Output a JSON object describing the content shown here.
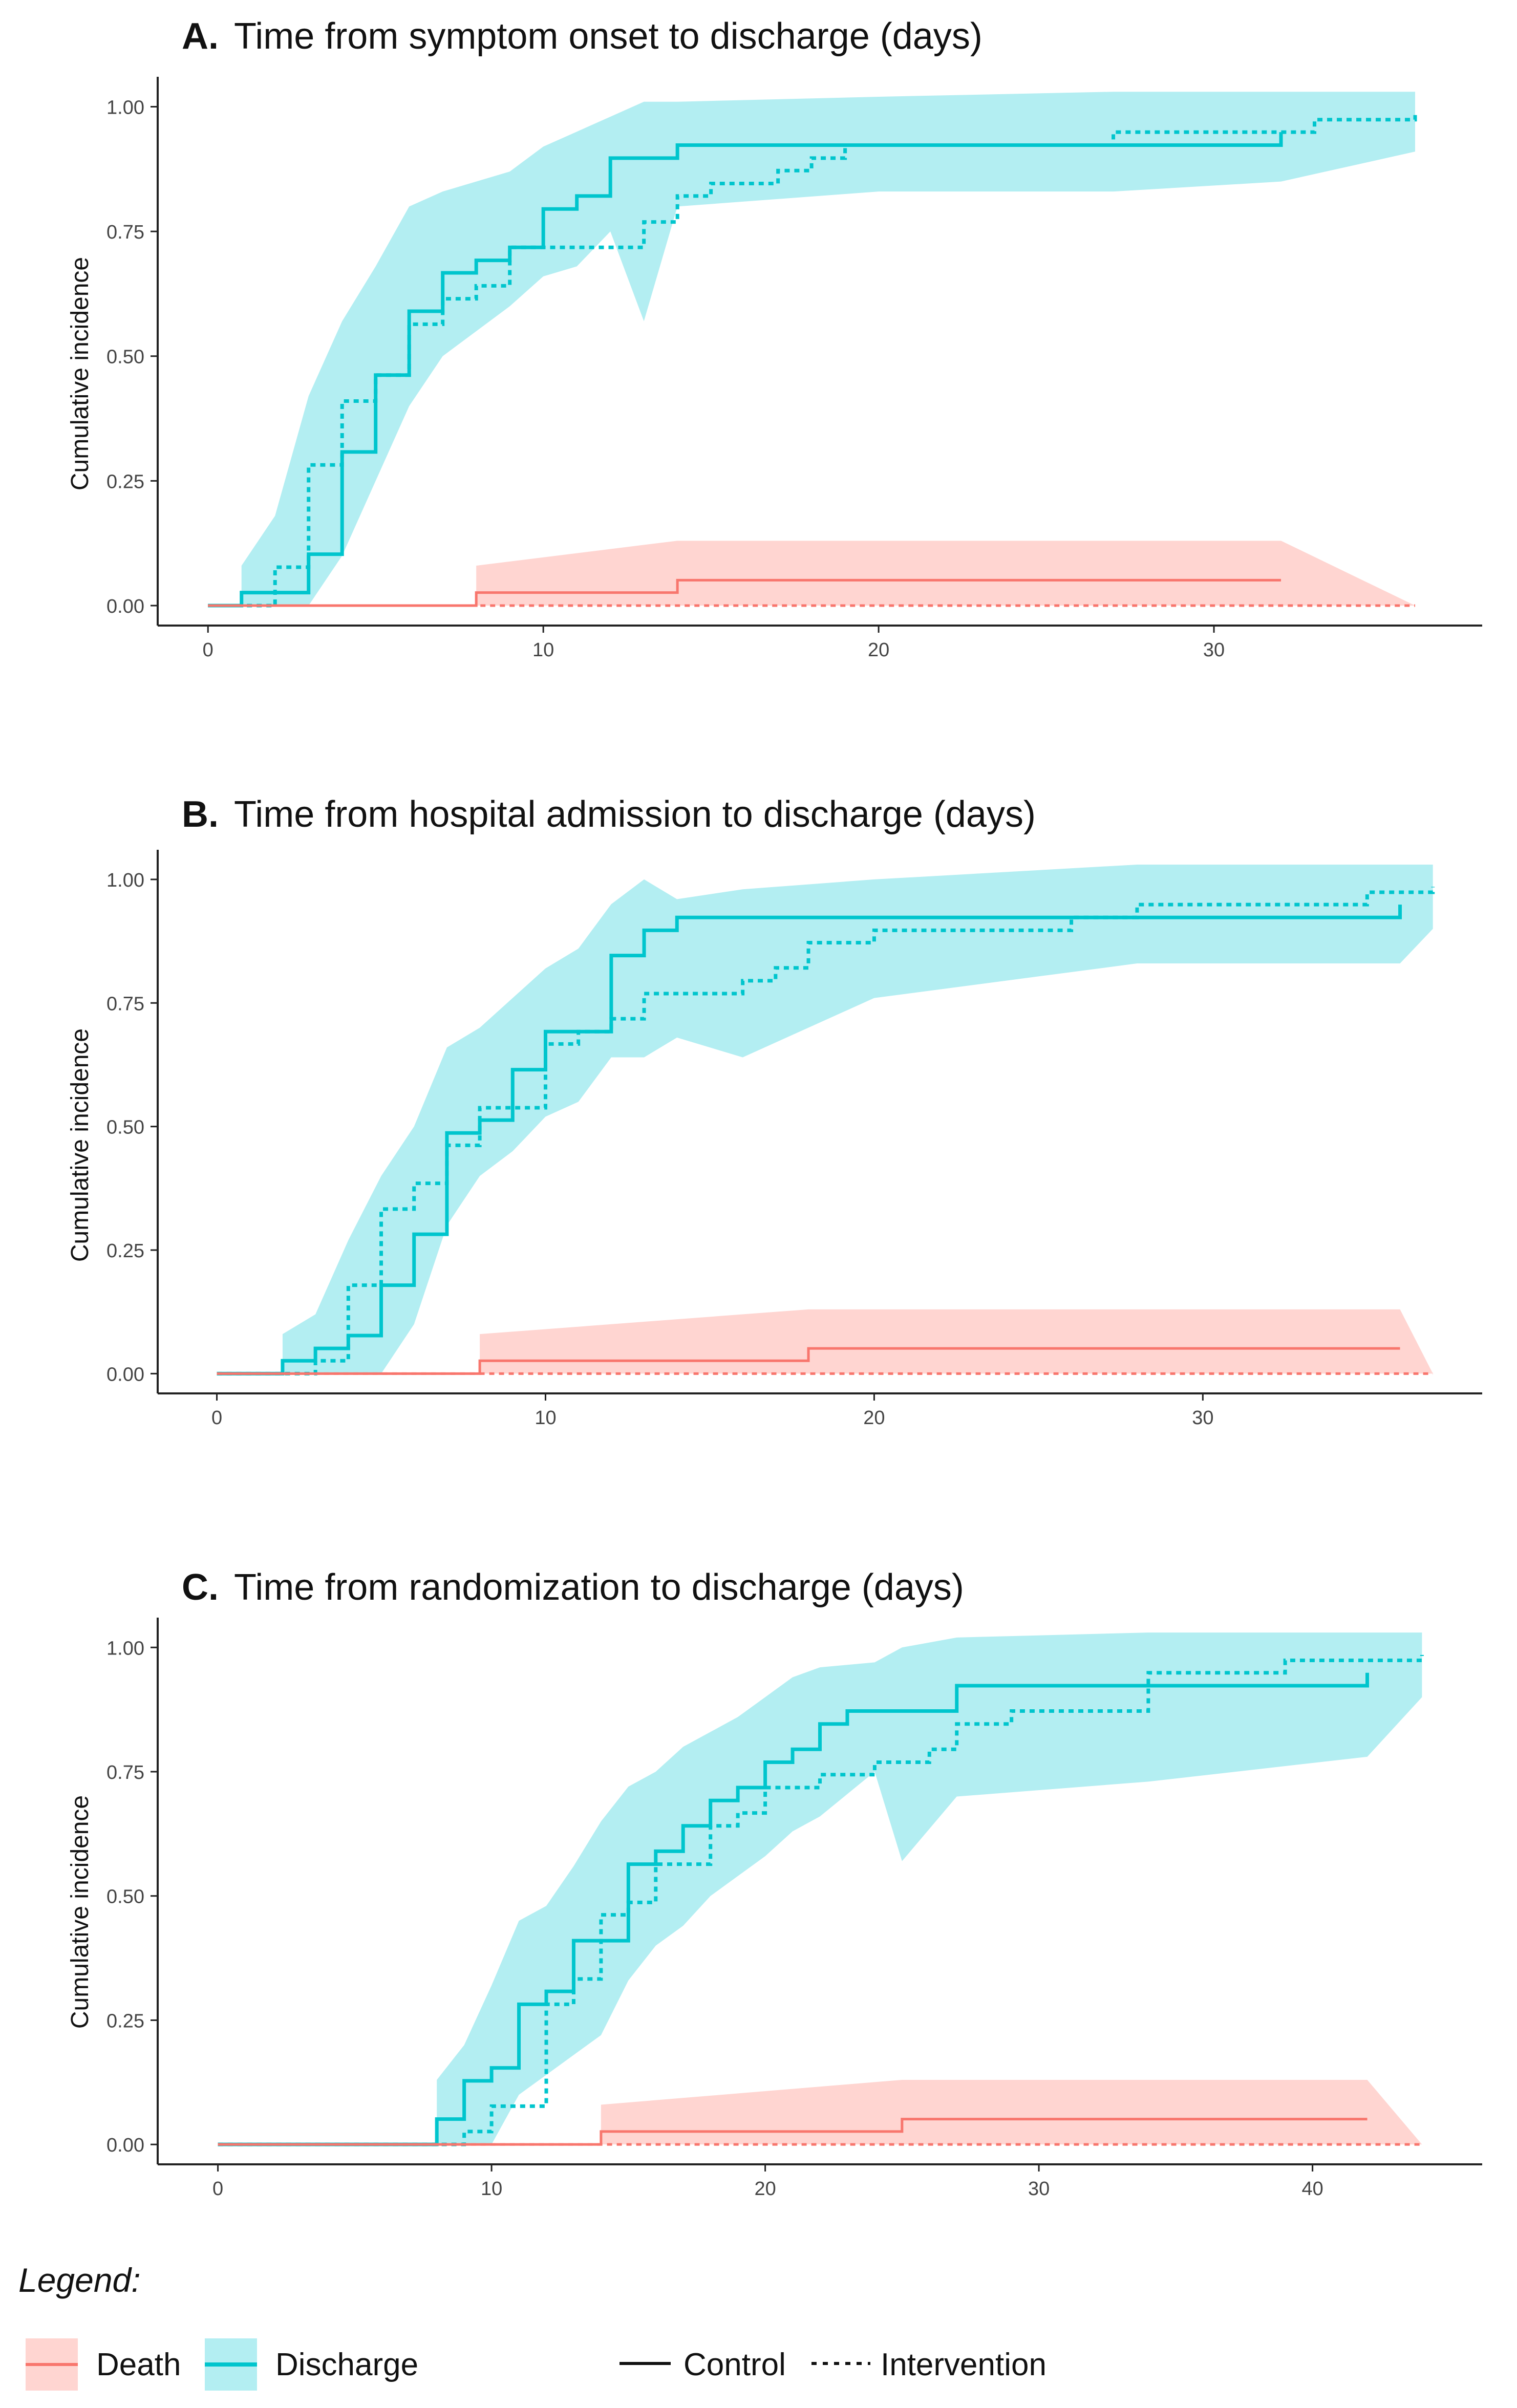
{
  "legend": {
    "heading": "Legend:",
    "events": [
      {
        "key": "death",
        "label": "Death",
        "line_color": "#f8766d",
        "fill_color": "#ffd5d1"
      },
      {
        "key": "discharge",
        "label": "Discharge",
        "line_color": "#00c5cd",
        "fill_color": "#b3eef2"
      }
    ],
    "groups": [
      {
        "key": "control",
        "label": "Control",
        "line_style": "solid"
      },
      {
        "key": "intervention",
        "label": "Intervention",
        "line_style": "dotted"
      }
    ]
  },
  "chart_data": [
    {
      "type": "line",
      "subtype": "step cumulative incidence with confidence bands",
      "title_prefix": "A.",
      "title": "Time from symptom onset to discharge (days)",
      "ylabel": "Cumulative incidence",
      "xlabel": "",
      "xlim": [
        -1.5,
        38
      ],
      "ylim": [
        -0.04,
        1.06
      ],
      "x_ticks": [
        0,
        10,
        20,
        30
      ],
      "y_ticks": [
        0.0,
        0.25,
        0.5,
        0.75,
        1.0
      ],
      "y_tick_labels": [
        "0.00",
        "0.25",
        "0.50",
        "0.75",
        "1.00"
      ],
      "grid": false,
      "series": [
        {
          "name": "Discharge - Control",
          "event": "discharge",
          "group": "control",
          "x": [
            0,
            1,
            3,
            4,
            5,
            6,
            7,
            8,
            9,
            10,
            11,
            12,
            14,
            32
          ],
          "y": [
            0.0,
            0.026,
            0.103,
            0.308,
            0.462,
            0.59,
            0.667,
            0.692,
            0.718,
            0.795,
            0.821,
            0.897,
            0.923,
            0.949
          ]
        },
        {
          "name": "Discharge - Intervention",
          "event": "discharge",
          "group": "intervention",
          "x": [
            0,
            2,
            3,
            4,
            5,
            6,
            7,
            8,
            9,
            13,
            14,
            15,
            17,
            18,
            19,
            23,
            27,
            33,
            36
          ],
          "y": [
            0.0,
            0.077,
            0.282,
            0.41,
            0.462,
            0.564,
            0.615,
            0.641,
            0.718,
            0.769,
            0.821,
            0.846,
            0.872,
            0.897,
            0.923,
            0.923,
            0.949,
            0.974,
            0.985
          ]
        },
        {
          "name": "Death - Control",
          "event": "death",
          "group": "control",
          "x": [
            0,
            8,
            14,
            32
          ],
          "y": [
            0.0,
            0.026,
            0.051,
            0.051
          ]
        },
        {
          "name": "Death - Intervention",
          "event": "death",
          "group": "intervention",
          "x": [
            0,
            36
          ],
          "y": [
            0.0,
            0.0
          ]
        }
      ],
      "bands": [
        {
          "name": "Discharge 95% CI",
          "event": "discharge",
          "x": [
            1,
            2,
            3,
            4,
            5,
            6,
            7,
            8,
            9,
            10,
            11,
            12,
            13,
            14,
            20,
            27,
            32,
            36
          ],
          "lower": [
            0.0,
            0.0,
            0.0,
            0.1,
            0.25,
            0.4,
            0.5,
            0.55,
            0.6,
            0.66,
            0.68,
            0.75,
            0.57,
            0.8,
            0.83,
            0.83,
            0.85,
            0.91
          ],
          "upper": [
            0.08,
            0.18,
            0.42,
            0.57,
            0.68,
            0.8,
            0.83,
            0.85,
            0.87,
            0.92,
            0.95,
            0.98,
            1.01,
            1.01,
            1.02,
            1.03,
            1.03,
            1.03
          ]
        },
        {
          "name": "Death 95% CI",
          "event": "death",
          "x": [
            8,
            14,
            32,
            36
          ],
          "lower": [
            0.0,
            0.0,
            0.0,
            0.0
          ],
          "upper": [
            0.08,
            0.13,
            0.13,
            0.0
          ]
        }
      ]
    },
    {
      "type": "line",
      "subtype": "step cumulative incidence with confidence bands",
      "title_prefix": "B.",
      "title": "Time from hospital admission to discharge (days)",
      "ylabel": "Cumulative incidence",
      "xlabel": "",
      "xlim": [
        -1.8,
        38.5
      ],
      "ylim": [
        -0.04,
        1.06
      ],
      "x_ticks": [
        0,
        10,
        20,
        30
      ],
      "y_ticks": [
        0.0,
        0.25,
        0.5,
        0.75,
        1.0
      ],
      "y_tick_labels": [
        "0.00",
        "0.25",
        "0.50",
        "0.75",
        "1.00"
      ],
      "grid": false,
      "series": [
        {
          "name": "Discharge - Control",
          "event": "discharge",
          "group": "control",
          "x": [
            0,
            2,
            3,
            4,
            5,
            6,
            7,
            8,
            9,
            10,
            12,
            13,
            14,
            36
          ],
          "y": [
            0.0,
            0.026,
            0.051,
            0.077,
            0.179,
            0.282,
            0.487,
            0.513,
            0.615,
            0.692,
            0.846,
            0.897,
            0.923,
            0.949
          ]
        },
        {
          "name": "Discharge - Intervention",
          "event": "discharge",
          "group": "intervention",
          "x": [
            0,
            3,
            4,
            5,
            6,
            7,
            8,
            10,
            11,
            12,
            13,
            16,
            17,
            18,
            20,
            26,
            28,
            35,
            37
          ],
          "y": [
            0.0,
            0.026,
            0.179,
            0.333,
            0.385,
            0.462,
            0.538,
            0.667,
            0.692,
            0.718,
            0.769,
            0.795,
            0.821,
            0.872,
            0.897,
            0.923,
            0.949,
            0.974,
            0.985
          ]
        },
        {
          "name": "Death - Control",
          "event": "death",
          "group": "control",
          "x": [
            0,
            8,
            18,
            36
          ],
          "y": [
            0.0,
            0.026,
            0.051,
            0.051
          ]
        },
        {
          "name": "Death - Intervention",
          "event": "death",
          "group": "intervention",
          "x": [
            0,
            37
          ],
          "y": [
            0.0,
            0.0
          ]
        }
      ],
      "bands": [
        {
          "name": "Discharge 95% CI",
          "event": "discharge",
          "x": [
            2,
            3,
            4,
            5,
            6,
            7,
            8,
            9,
            10,
            11,
            12,
            13,
            14,
            16,
            20,
            28,
            36,
            37
          ],
          "lower": [
            0.0,
            0.0,
            0.0,
            0.0,
            0.1,
            0.3,
            0.4,
            0.45,
            0.52,
            0.55,
            0.64,
            0.64,
            0.68,
            0.64,
            0.76,
            0.83,
            0.83,
            0.9
          ],
          "upper": [
            0.08,
            0.12,
            0.27,
            0.4,
            0.5,
            0.66,
            0.7,
            0.76,
            0.82,
            0.86,
            0.95,
            1.0,
            0.96,
            0.98,
            1.0,
            1.03,
            1.03,
            1.03
          ]
        },
        {
          "name": "Death 95% CI",
          "event": "death",
          "x": [
            8,
            18,
            36,
            37
          ],
          "lower": [
            0.0,
            0.0,
            0.0,
            0.0
          ],
          "upper": [
            0.08,
            0.13,
            0.13,
            0.0
          ]
        }
      ]
    },
    {
      "type": "line",
      "subtype": "step cumulative incidence with confidence bands",
      "title_prefix": "C.",
      "title": "Time from randomization to discharge (days)",
      "ylabel": "Cumulative incidence",
      "xlabel": "",
      "xlim": [
        -2.2,
        46.2
      ],
      "ylim": [
        -0.04,
        1.06
      ],
      "x_ticks": [
        0,
        10,
        20,
        30,
        40
      ],
      "y_ticks": [
        0.0,
        0.25,
        0.5,
        0.75,
        1.0
      ],
      "y_tick_labels": [
        "0.00",
        "0.25",
        "0.50",
        "0.75",
        "1.00"
      ],
      "grid": false,
      "series": [
        {
          "name": "Discharge - Control",
          "event": "discharge",
          "group": "control",
          "x": [
            0,
            8,
            9,
            10,
            11,
            12,
            13,
            15,
            16,
            17,
            18,
            19,
            20,
            21,
            22,
            23,
            27,
            42
          ],
          "y": [
            0.0,
            0.051,
            0.128,
            0.154,
            0.282,
            0.308,
            0.41,
            0.564,
            0.59,
            0.641,
            0.692,
            0.718,
            0.769,
            0.795,
            0.846,
            0.872,
            0.923,
            0.949
          ]
        },
        {
          "name": "Discharge - Intervention",
          "event": "discharge",
          "group": "intervention",
          "x": [
            0,
            9,
            10,
            12,
            13,
            14,
            15,
            16,
            18,
            19,
            20,
            22,
            24,
            26,
            27,
            29,
            34,
            39,
            44
          ],
          "y": [
            0.0,
            0.026,
            0.077,
            0.282,
            0.333,
            0.462,
            0.487,
            0.564,
            0.641,
            0.667,
            0.718,
            0.744,
            0.769,
            0.795,
            0.846,
            0.872,
            0.949,
            0.974,
            0.985
          ]
        },
        {
          "name": "Death - Control",
          "event": "death",
          "group": "control",
          "x": [
            0,
            14,
            25,
            42
          ],
          "y": [
            0.0,
            0.026,
            0.051,
            0.051
          ]
        },
        {
          "name": "Death - Intervention",
          "event": "death",
          "group": "intervention",
          "x": [
            0,
            44
          ],
          "y": [
            0.0,
            0.0
          ]
        }
      ],
      "bands": [
        {
          "name": "Discharge 95% CI",
          "event": "discharge",
          "x": [
            8,
            9,
            10,
            11,
            12,
            13,
            14,
            15,
            16,
            17,
            18,
            19,
            20,
            21,
            22,
            24,
            25,
            27,
            34,
            42,
            44
          ],
          "lower": [
            0.0,
            0.0,
            0.0,
            0.1,
            0.14,
            0.18,
            0.22,
            0.33,
            0.4,
            0.44,
            0.5,
            0.54,
            0.58,
            0.63,
            0.66,
            0.75,
            0.57,
            0.7,
            0.73,
            0.78,
            0.9
          ],
          "upper": [
            0.13,
            0.2,
            0.32,
            0.45,
            0.48,
            0.56,
            0.65,
            0.72,
            0.75,
            0.8,
            0.83,
            0.86,
            0.9,
            0.94,
            0.96,
            0.97,
            1.0,
            1.02,
            1.03,
            1.03,
            1.03
          ]
        },
        {
          "name": "Death 95% CI",
          "event": "death",
          "x": [
            14,
            25,
            42,
            44
          ],
          "lower": [
            0.0,
            0.0,
            0.0,
            0.0
          ],
          "upper": [
            0.08,
            0.13,
            0.13,
            0.0
          ]
        }
      ]
    }
  ]
}
